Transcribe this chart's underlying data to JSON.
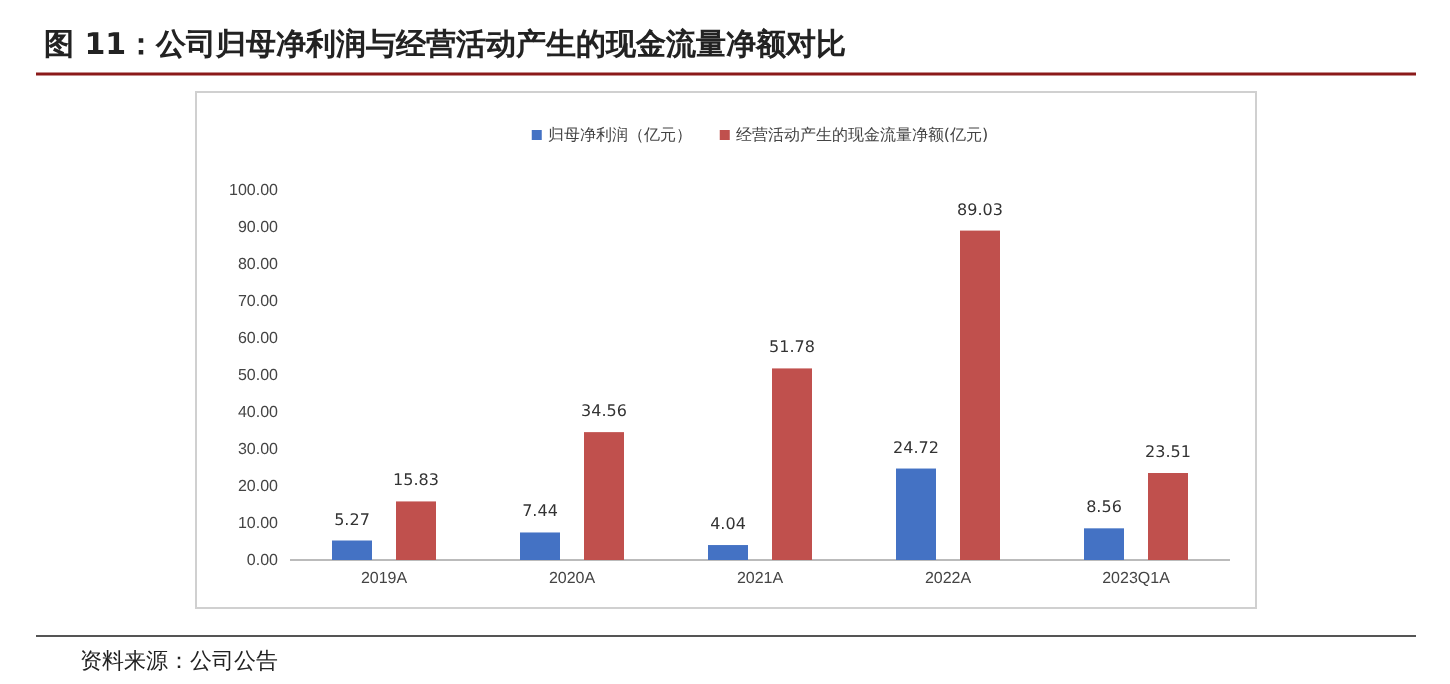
{
  "chart_data": {
    "type": "bar",
    "title": "图 11：公司归母净利润与经营活动产生的现金流量净额对比",
    "categories": [
      "2019A",
      "2020A",
      "2021A",
      "2022A",
      "2023Q1A"
    ],
    "series": [
      {
        "name": "归母净利润（亿元）",
        "color": "#4472c4",
        "values": [
          5.27,
          7.44,
          4.04,
          24.72,
          8.56
        ]
      },
      {
        "name": "经营活动产生的现金流量净额(亿元)",
        "color": "#c0504d",
        "values": [
          15.83,
          34.56,
          51.78,
          89.03,
          23.51
        ]
      }
    ],
    "ylim": [
      0,
      100
    ],
    "yticks": [
      {
        "value": 0,
        "label": "0.00"
      },
      {
        "value": 10,
        "label": "10.00"
      },
      {
        "value": 20,
        "label": "20.00"
      },
      {
        "value": 30,
        "label": "30.00"
      },
      {
        "value": 40,
        "label": "40.00"
      },
      {
        "value": 50,
        "label": "50.00"
      },
      {
        "value": 60,
        "label": "60.00"
      },
      {
        "value": 70,
        "label": "70.00"
      },
      {
        "value": 80,
        "label": "80.00"
      },
      {
        "value": 90,
        "label": "90.00"
      },
      {
        "value": 100,
        "label": "100.00"
      }
    ],
    "data_labels": true,
    "legend": "top",
    "annotations": [
      "资料来源：公司公告"
    ]
  }
}
